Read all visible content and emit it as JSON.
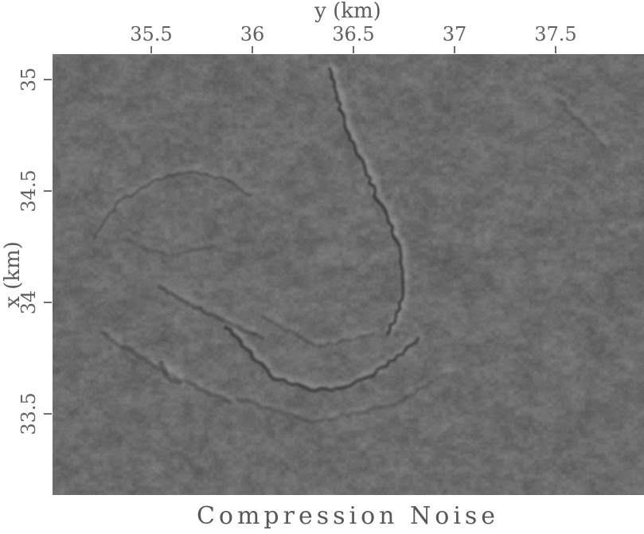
{
  "figure": {
    "caption": "Compression Noise"
  },
  "axes": {
    "top": {
      "label": "y (km)",
      "range": [
        35.012,
        37.937
      ],
      "ticks": [
        {
          "value": 35.5,
          "label": "35.5"
        },
        {
          "value": 36,
          "label": "36"
        },
        {
          "value": 36.5,
          "label": "36.5"
        },
        {
          "value": 37,
          "label": "37"
        },
        {
          "value": 37.5,
          "label": "37.5"
        }
      ]
    },
    "left": {
      "label": "x (km)",
      "range": [
        35.114,
        33.136
      ],
      "ticks": [
        {
          "value": 35,
          "label": "35"
        },
        {
          "value": 34.5,
          "label": "34.5"
        },
        {
          "value": 34,
          "label": "34"
        },
        {
          "value": 33.5,
          "label": "33.5"
        }
      ]
    }
  },
  "chart_data": {
    "type": "heatmap",
    "title": "Compression Noise",
    "xlabel": "y (km)",
    "ylabel": "x (km)",
    "x_axis_position": "top",
    "xlim": [
      35.012,
      37.937
    ],
    "ylim": [
      33.136,
      35.114
    ],
    "y_orientation": "values increase upward",
    "x_ticks": [
      35.5,
      36,
      36.5,
      37,
      37.5
    ],
    "y_ticks": [
      35,
      34.5,
      34,
      33.5
    ],
    "colormap": "grayscale",
    "grid": false,
    "legend": false,
    "palette": {
      "background": "#6b6b6b",
      "dark_extreme": "#3a3a3a",
      "light_extreme": "#8f8f8f",
      "axis_text": "#5c5c5c"
    },
    "image_description": "Low-contrast mottled grayscale seismic noise image with faint dark wavefront-like arcs: a jagged near-vertical streak in the upper middle curving right and down, a bowl-shaped smile arc at bottom center, concentric arcs opening toward lower right on the left side, and mostly featureless speckle on the right third.",
    "noise": {
      "seed": 987654321,
      "base_gray": 107,
      "octaves": [
        {
          "cell": [
            26,
            18
          ],
          "amp": 5
        },
        {
          "cell": [
            13,
            9
          ],
          "amp": 7
        },
        {
          "cell": [
            6,
            5
          ],
          "amp": 7
        },
        {
          "cell": [
            2.7,
            2.7
          ],
          "amp": 5
        }
      ],
      "speckle_amp": 4,
      "flank_light_factor": 0.45
    },
    "features": [
      {
        "name": "upper-vertical-wiggly-streak",
        "darkness": 0.55,
        "width": 4,
        "jitter": 2.5,
        "points": [
          [
            36.39,
            35.05
          ],
          [
            36.43,
            34.89
          ],
          [
            36.47,
            34.75
          ],
          [
            36.54,
            34.63
          ],
          [
            36.61,
            34.48
          ],
          [
            36.68,
            34.36
          ],
          [
            36.72,
            34.25
          ],
          [
            36.74,
            34.14
          ],
          [
            36.74,
            34.04
          ],
          [
            36.71,
            33.93
          ],
          [
            36.67,
            33.86
          ]
        ]
      },
      {
        "name": "bottom-center-smile-arc",
        "darkness": 0.5,
        "width": 4.5,
        "jitter": 2,
        "points": [
          [
            35.87,
            33.89
          ],
          [
            35.97,
            33.79
          ],
          [
            36.11,
            33.66
          ],
          [
            36.29,
            33.61
          ],
          [
            36.44,
            33.61
          ],
          [
            36.6,
            33.68
          ],
          [
            36.74,
            33.77
          ],
          [
            36.82,
            33.84
          ]
        ]
      },
      {
        "name": "upper-left-arc",
        "darkness": 0.28,
        "width": 4,
        "jitter": 2,
        "points": [
          [
            35.22,
            34.29
          ],
          [
            35.34,
            34.45
          ],
          [
            35.5,
            34.54
          ],
          [
            35.7,
            34.59
          ],
          [
            35.87,
            34.55
          ],
          [
            35.99,
            34.48
          ]
        ]
      },
      {
        "name": "left-mid-diagonal-streak",
        "darkness": 0.3,
        "width": 5,
        "jitter": 2,
        "points": [
          [
            35.54,
            34.07
          ],
          [
            35.78,
            33.95
          ],
          [
            36.05,
            33.84
          ]
        ]
      },
      {
        "name": "lower-left-diagonal-streak",
        "darkness": 0.24,
        "width": 5,
        "jitter": 2,
        "points": [
          [
            35.26,
            33.86
          ],
          [
            35.58,
            33.68
          ],
          [
            35.89,
            33.55
          ]
        ]
      },
      {
        "name": "outer-arc-below-smile",
        "darkness": 0.2,
        "width": 5,
        "jitter": 2,
        "points": [
          [
            35.93,
            33.57
          ],
          [
            36.29,
            33.46
          ],
          [
            36.72,
            33.55
          ],
          [
            36.96,
            33.68
          ]
        ]
      },
      {
        "name": "inner-faint-arc",
        "darkness": 0.2,
        "width": 4,
        "jitter": 2,
        "points": [
          [
            36.05,
            33.93
          ],
          [
            36.33,
            33.8
          ],
          [
            36.6,
            33.86
          ]
        ]
      },
      {
        "name": "top-right-faint-diagonal",
        "darkness": 0.16,
        "width": 5,
        "jitter": 2,
        "points": [
          [
            37.51,
            34.91
          ],
          [
            37.74,
            34.7
          ]
        ]
      },
      {
        "name": "left-inner-faint-arc",
        "darkness": 0.15,
        "width": 4,
        "jitter": 2,
        "points": [
          [
            35.34,
            34.29
          ],
          [
            35.58,
            34.21
          ],
          [
            35.81,
            34.25
          ]
        ]
      },
      {
        "name": "dark-blob-hook",
        "darkness": 0.32,
        "width": 6,
        "jitter": 1.5,
        "points": [
          [
            35.55,
            33.73
          ],
          [
            35.58,
            33.66
          ],
          [
            35.64,
            33.64
          ]
        ]
      }
    ]
  }
}
